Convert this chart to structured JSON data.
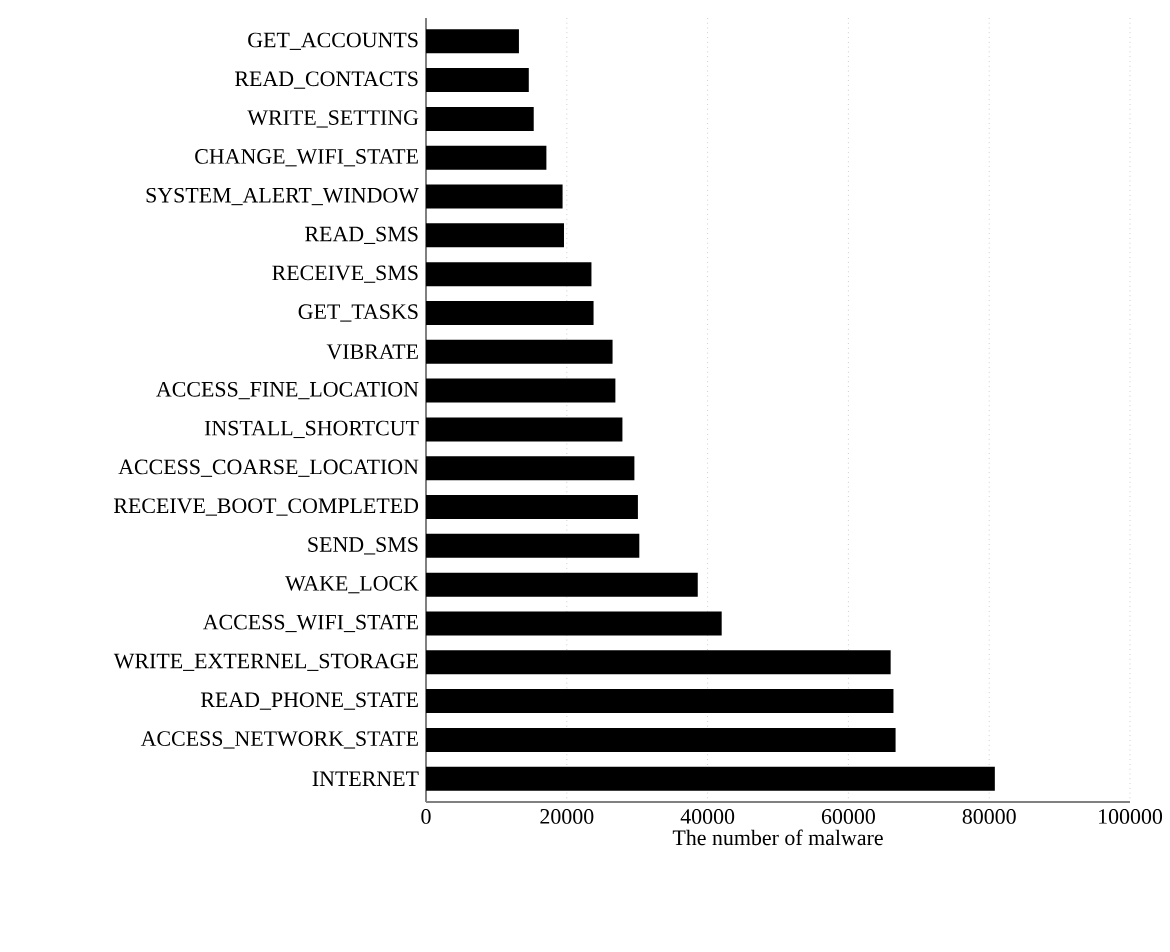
{
  "chart_data": {
    "type": "bar",
    "orientation": "horizontal",
    "xlabel": "The number of malware",
    "categories": [
      "GET_ACCOUNTS",
      "READ_CONTACTS",
      "WRITE_SETTING",
      "CHANGE_WIFI_STATE",
      "SYSTEM_ALERT_WINDOW",
      "READ_SMS",
      "RECEIVE_SMS",
      "GET_TASKS",
      "VIBRATE",
      "ACCESS_FINE_LOCATION",
      "INSTALL_SHORTCUT",
      "ACCESS_COARSE_LOCATION",
      "RECEIVE_BOOT_COMPLETED",
      "SEND_SMS",
      "WAKE_LOCK",
      "ACCESS_WIFI_STATE",
      "WRITE_EXTERNEL_STORAGE",
      "READ_PHONE_STATE",
      "ACCESS_NETWORK_STATE",
      "INTERNET"
    ],
    "values": [
      13200,
      14600,
      15300,
      17100,
      19400,
      19600,
      23500,
      23800,
      26500,
      26900,
      27900,
      29600,
      30100,
      30300,
      38600,
      42000,
      66000,
      66400,
      66700,
      80800
    ],
    "color": "#000000",
    "xlim": [
      0,
      100000
    ],
    "xticks": [
      0,
      20000,
      40000,
      60000,
      80000,
      100000
    ],
    "grid": "x"
  }
}
